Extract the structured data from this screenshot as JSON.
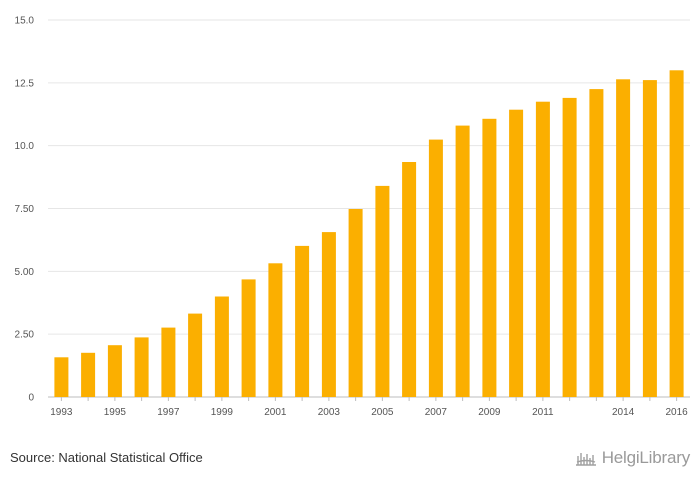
{
  "chart_data": {
    "type": "bar",
    "title": "",
    "xlabel": "",
    "ylabel": "",
    "ylim": [
      0,
      15
    ],
    "yticks": [
      "0",
      "2.50",
      "5.00",
      "7.50",
      "10.0",
      "12.5",
      "15.0"
    ],
    "ytick_values": [
      0,
      2.5,
      5,
      7.5,
      10,
      12.5,
      15
    ],
    "categories": [
      "1993",
      "1994",
      "1995",
      "1996",
      "1997",
      "1998",
      "1999",
      "2000",
      "2001",
      "2002",
      "2003",
      "2004",
      "2005",
      "2006",
      "2007",
      "2008",
      "2009",
      "2010",
      "2011",
      "2012",
      "2013",
      "2014",
      "2015",
      "2016"
    ],
    "x_tick_labels": [
      "1993",
      "1995",
      "1997",
      "1999",
      "2001",
      "2003",
      "2005",
      "2007",
      "2009",
      "2011",
      "2014",
      "2016"
    ],
    "values": [
      1.58,
      1.76,
      2.06,
      2.37,
      2.76,
      3.32,
      4.0,
      4.68,
      5.32,
      6.01,
      6.56,
      7.48,
      8.4,
      9.35,
      10.24,
      10.8,
      11.07,
      11.43,
      11.75,
      11.9,
      12.25,
      12.64,
      12.61,
      13.0
    ],
    "bar_color": "#FBAF00",
    "grid_color": "#e6e6e6",
    "grid": true
  },
  "footer": {
    "source": "Source: National Statistical Office",
    "brand": "HelgiLibrary"
  }
}
